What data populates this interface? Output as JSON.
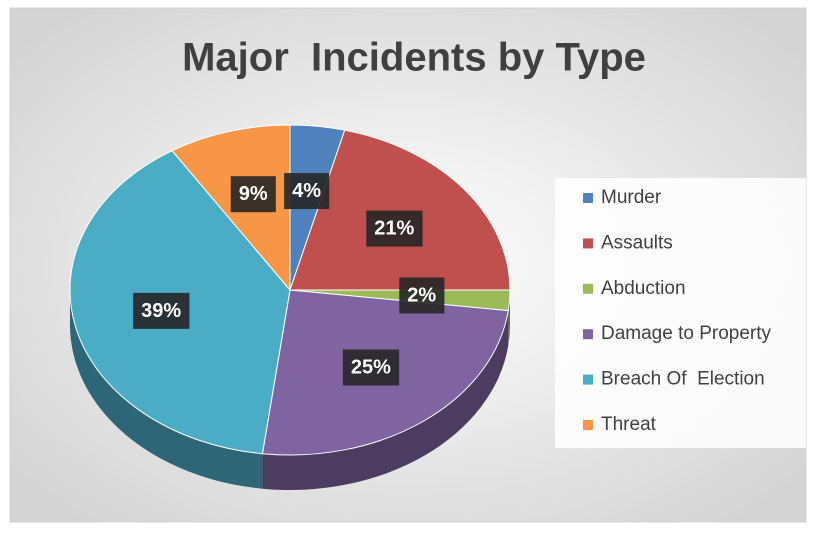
{
  "chart_data": {
    "type": "pie",
    "title": "Major  Incidents by Type",
    "categories": [
      "Murder",
      "Assaults",
      "Abduction",
      "Damage to Property",
      "Breach Of  Election",
      "Threat"
    ],
    "values": [
      4,
      21,
      2,
      25,
      39,
      9
    ],
    "value_labels": [
      "4%",
      "21%",
      "2%",
      "25%",
      "39%",
      "9%"
    ],
    "colors": [
      "#4f81bd",
      "#c0504d",
      "#9bbb59",
      "#8064a2",
      "#4bacc6",
      "#f79646"
    ],
    "legend": "right"
  }
}
